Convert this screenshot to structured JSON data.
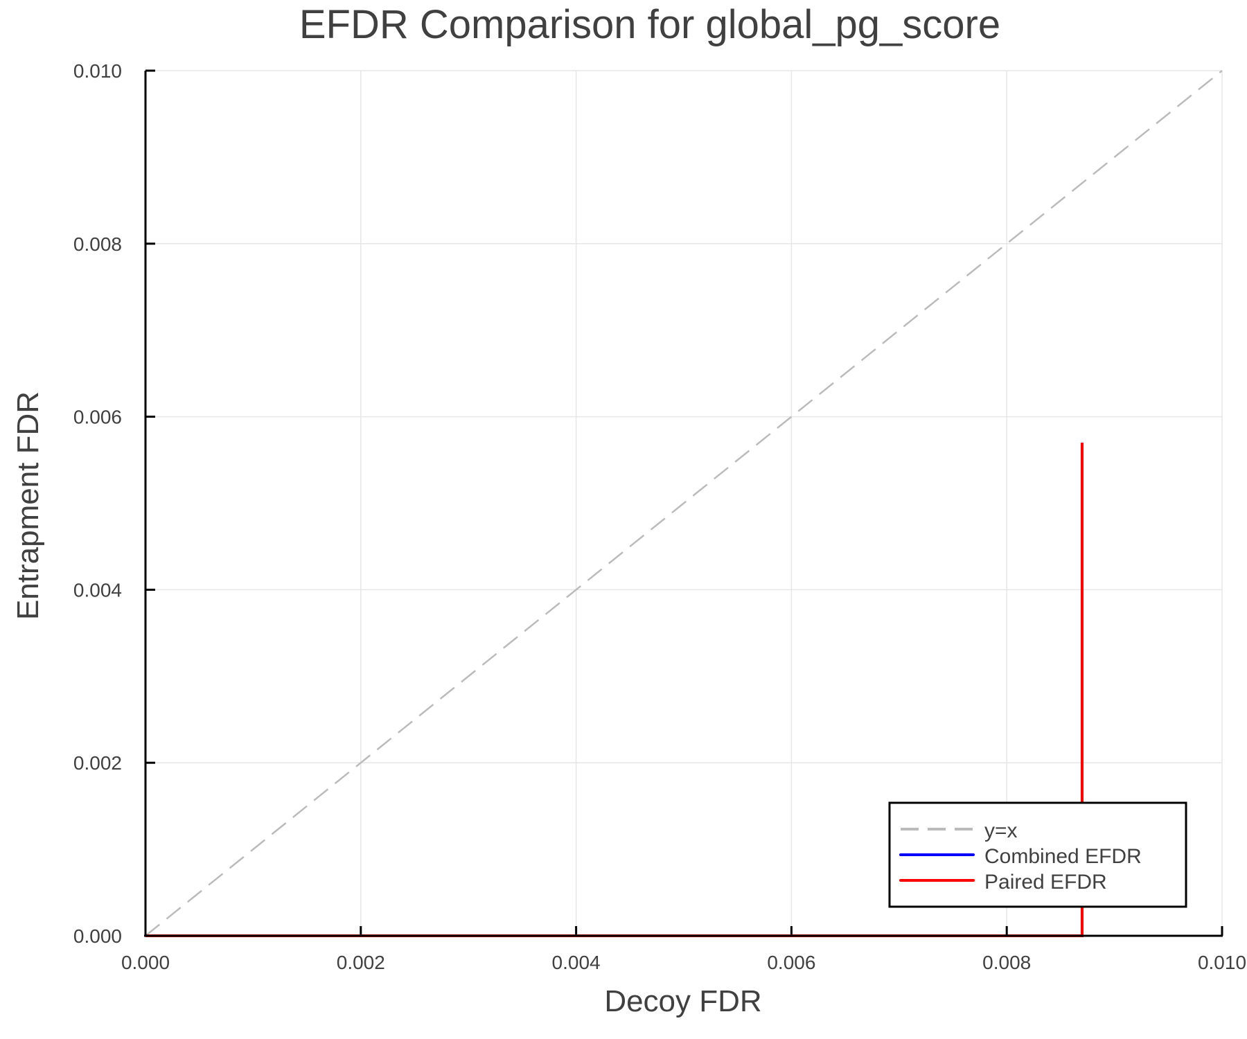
{
  "chart_data": {
    "type": "line",
    "title": "EFDR Comparison for global_pg_score",
    "xlabel": "Decoy FDR",
    "ylabel": "Entrapment FDR",
    "xlim": [
      0.0,
      0.01
    ],
    "ylim": [
      0.0,
      0.01
    ],
    "xticks": [
      "0.000",
      "0.002",
      "0.004",
      "0.006",
      "0.008",
      "0.010"
    ],
    "yticks": [
      "0.000",
      "0.002",
      "0.004",
      "0.006",
      "0.008",
      "0.010"
    ],
    "grid": true,
    "legend_position": "bottom-right",
    "series": [
      {
        "name": "y=x",
        "style": "dashed",
        "color": "#bbbbbb",
        "x": [
          0.0,
          0.01
        ],
        "y": [
          0.0,
          0.01
        ]
      },
      {
        "name": "Combined EFDR",
        "style": "solid",
        "color": "#0000ff",
        "x": [
          0.0,
          0.0087,
          0.0087
        ],
        "y": [
          0.0,
          0.0,
          0.0057
        ]
      },
      {
        "name": "Paired EFDR",
        "style": "solid",
        "color": "#ff0000",
        "x": [
          0.0,
          0.0087,
          0.0087
        ],
        "y": [
          0.0,
          0.0,
          0.0057
        ]
      }
    ]
  },
  "colors": {
    "text": "#404040",
    "grid": "#e6e6e6",
    "axis": "#000000",
    "identity": "#bbbbbb",
    "combined": "#0000ff",
    "paired": "#ff0000"
  }
}
